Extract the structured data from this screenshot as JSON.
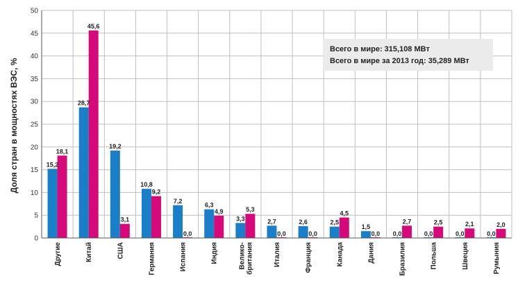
{
  "chart_data": {
    "type": "bar",
    "ylabel": "Доля стран в мощностях ВЭС, %",
    "ylim": [
      0,
      50
    ],
    "yticks": [
      0,
      5,
      10,
      15,
      20,
      25,
      30,
      35,
      40,
      45,
      50
    ],
    "grid": true,
    "categories": [
      [
        "Другие"
      ],
      [
        "Китай"
      ],
      [
        "США"
      ],
      [
        "Германия"
      ],
      [
        "Испания"
      ],
      [
        "Индия"
      ],
      [
        "Велико-",
        "британия"
      ],
      [
        "Италия"
      ],
      [
        "Франция"
      ],
      [
        "Канада"
      ],
      [
        "Дания"
      ],
      [
        "Бразилия"
      ],
      [
        "Польша"
      ],
      [
        "Швеция"
      ],
      [
        "Румыния"
      ]
    ],
    "series": [
      {
        "color": "#1a7fc8",
        "values": [
          15.2,
          28.7,
          19.2,
          10.8,
          7.2,
          6.3,
          3.3,
          2.7,
          2.6,
          2.5,
          1.5,
          0.0,
          0.0,
          0.0,
          0.0
        ],
        "labels": [
          "15,2",
          "28,7",
          "19,2",
          "10,8",
          "7,2",
          "6,3",
          "3,3",
          "2,7",
          "2,6",
          "2,5",
          "1,5",
          "0,0",
          "0,0",
          "0,0",
          "0,0"
        ]
      },
      {
        "color": "#d6097a",
        "values": [
          18.1,
          45.6,
          3.1,
          9.2,
          0.0,
          4.9,
          5.3,
          0.0,
          0.0,
          4.5,
          0.0,
          2.7,
          2.5,
          2.1,
          2.0
        ],
        "labels": [
          "18,1",
          "45,6",
          "3,1",
          "9,2",
          "0,0",
          "4,9",
          "5,3",
          "0,0",
          "0,0",
          "4,5",
          "0,0",
          "2,7",
          "2,5",
          "2,1",
          "2,0"
        ]
      }
    ],
    "annotations": [
      "Всего в мире: 315,108 МВт",
      "Всего в мире за 2013 год: 35,289 МВт"
    ],
    "colors": {
      "background": "#ffffff",
      "plot_background": "#ffffff",
      "grid": "#bfbfbf",
      "annotation_box": "#ebebeb"
    }
  }
}
